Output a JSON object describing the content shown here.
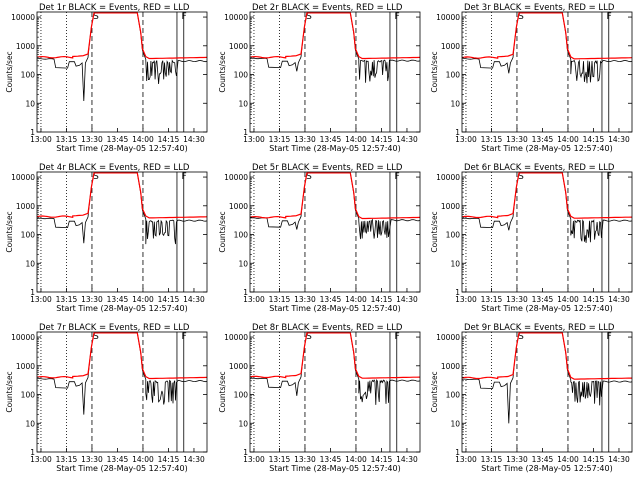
{
  "figure": {
    "shared": {
      "xlabel": "Start Time (28-May-05 12:57:40)",
      "ylabel": "Counts/sec",
      "x_ticks": [
        "13:00",
        "13:15",
        "13:30",
        "13:45",
        "14:00",
        "14:15",
        "14:30"
      ],
      "y_ticks": [
        "1",
        "10",
        "100",
        "1000",
        "10000"
      ],
      "title_suffix": "BLACK = Events, RED = LLD",
      "region_labels": [
        "S",
        "F"
      ],
      "series": [
        {
          "name": "Events",
          "color": "#000000"
        },
        {
          "name": "LLD",
          "color": "#ff0000"
        }
      ]
    }
  },
  "chart_data": [
    {
      "type": "line",
      "detector": "Det 1r",
      "title": "Det 1r BLACK = Events, RED = LLD",
      "xlim": [
        "12:57:40",
        "14:37:40"
      ],
      "ylim": [
        1,
        15000
      ],
      "yscale": "log",
      "events_dip_min": 12,
      "events_base": 280,
      "lld_base": 400
    },
    {
      "type": "line",
      "detector": "Det 2r",
      "title": "Det 2r BLACK = Events, RED = LLD",
      "xlim": [
        "12:57:40",
        "14:37:40"
      ],
      "ylim": [
        1,
        15000
      ],
      "yscale": "log",
      "events_dip_min": 130,
      "events_base": 290,
      "lld_base": 400
    },
    {
      "type": "line",
      "detector": "Det 3r",
      "title": "Det 3r BLACK = Events, RED = LLD",
      "xlim": [
        "12:57:40",
        "14:37:40"
      ],
      "ylim": [
        1,
        15000
      ],
      "yscale": "log",
      "events_dip_min": 110,
      "events_base": 280,
      "lld_base": 390
    },
    {
      "type": "line",
      "detector": "Det 4r",
      "title": "Det 4r BLACK = Events, RED = LLD",
      "xlim": [
        "12:57:40",
        "14:37:40"
      ],
      "ylim": [
        1,
        15000
      ],
      "yscale": "log",
      "events_dip_min": 50,
      "events_base": 290,
      "lld_base": 420
    },
    {
      "type": "line",
      "detector": "Det 5r",
      "title": "Det 5r BLACK = Events, RED = LLD",
      "xlim": [
        "12:57:40",
        "14:37:40"
      ],
      "ylim": [
        1,
        15000
      ],
      "yscale": "log",
      "events_dip_min": 150,
      "events_base": 300,
      "lld_base": 400
    },
    {
      "type": "line",
      "detector": "Det 6r",
      "title": "Det 6r BLACK = Events, RED = LLD",
      "xlim": [
        "12:57:40",
        "14:37:40"
      ],
      "ylim": [
        1,
        15000
      ],
      "yscale": "log",
      "events_dip_min": 140,
      "events_base": 290,
      "lld_base": 410
    },
    {
      "type": "line",
      "detector": "Det 7r",
      "title": "Det 7r BLACK = Events, RED = LLD",
      "xlim": [
        "12:57:40",
        "14:37:40"
      ],
      "ylim": [
        1,
        15000
      ],
      "yscale": "log",
      "events_dip_min": 20,
      "events_base": 280,
      "lld_base": 400
    },
    {
      "type": "line",
      "detector": "Det 8r",
      "title": "Det 8r BLACK = Events, RED = LLD",
      "xlim": [
        "12:57:40",
        "14:37:40"
      ],
      "ylim": [
        1,
        15000
      ],
      "yscale": "log",
      "events_dip_min": 90,
      "events_base": 290,
      "lld_base": 410
    },
    {
      "type": "line",
      "detector": "Det 9r",
      "title": "Det 9r BLACK = Events, RED = LLD",
      "xlim": [
        "12:57:40",
        "14:37:40"
      ],
      "ylim": [
        1,
        15000
      ],
      "yscale": "log",
      "events_dip_min": 10,
      "events_base": 270,
      "lld_base": 380
    }
  ]
}
